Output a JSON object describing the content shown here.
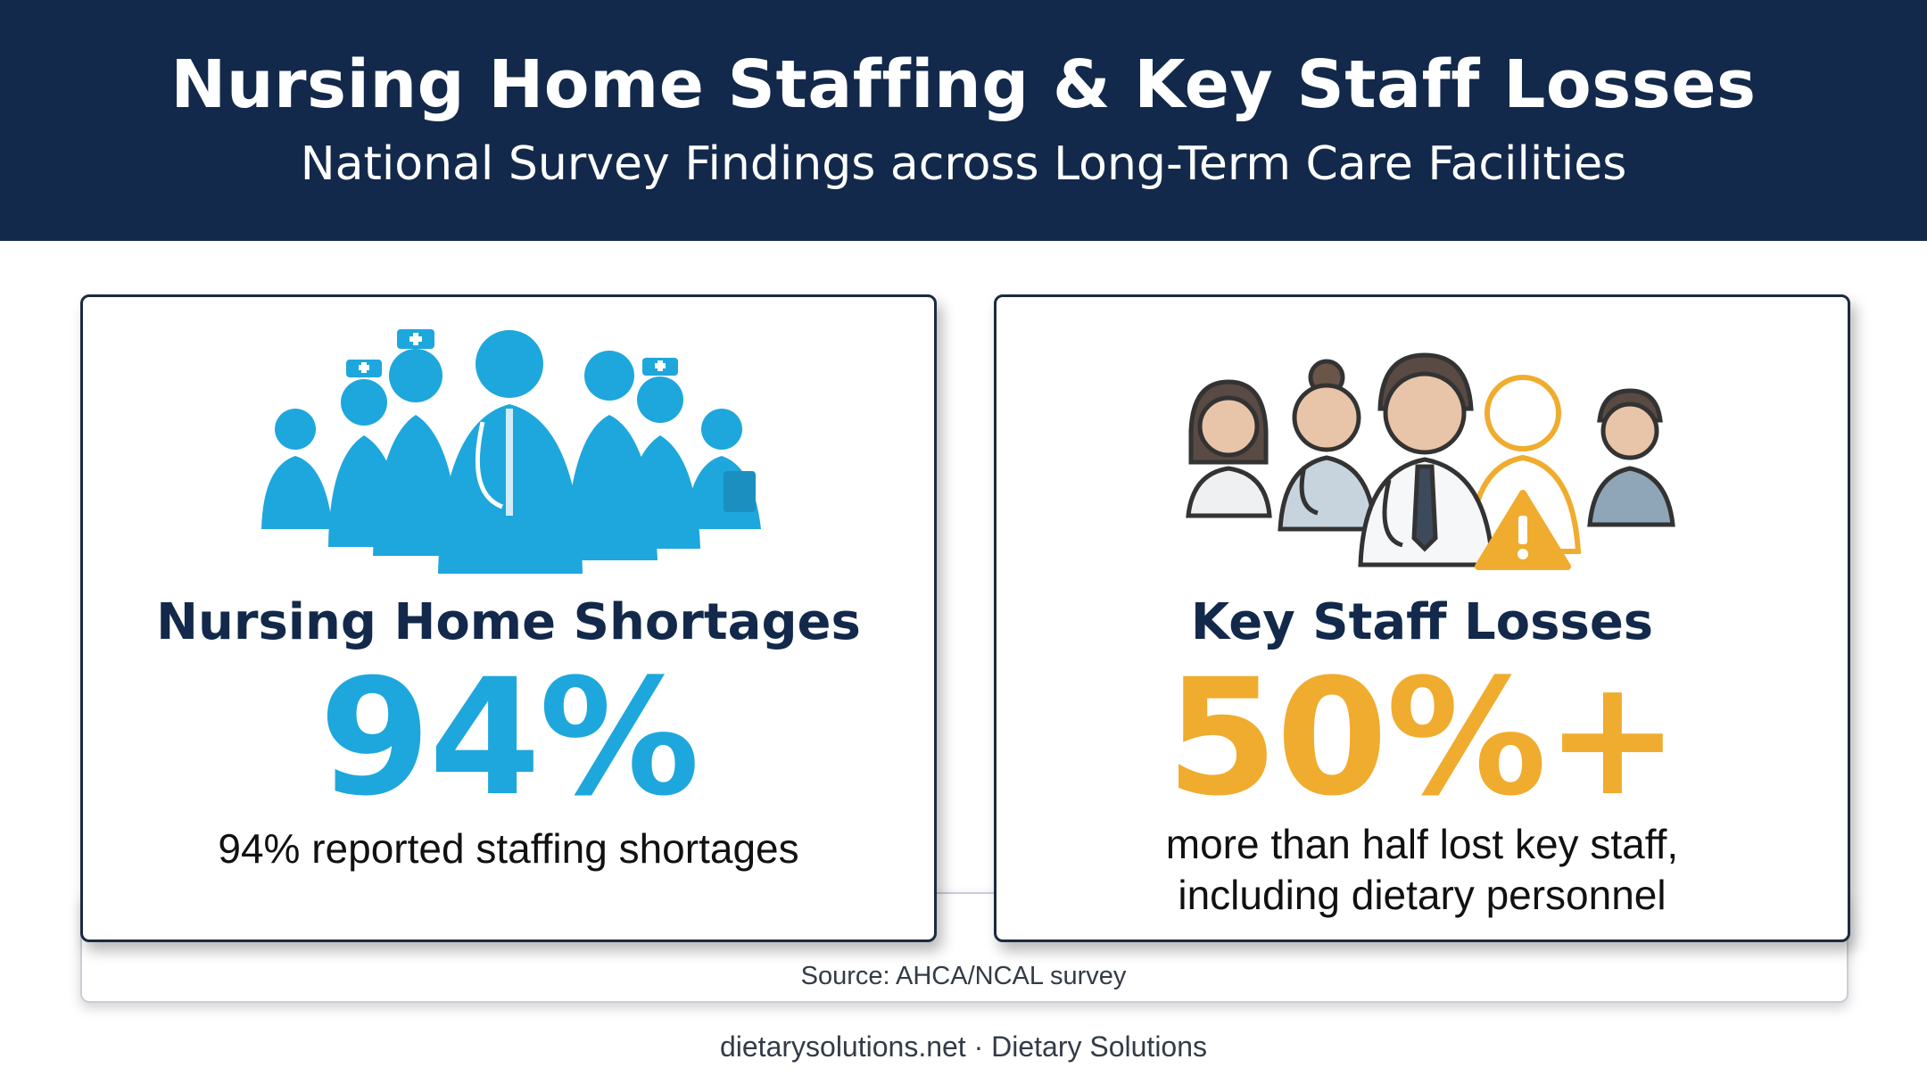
{
  "header": {
    "title": "Nursing Home Staffing & Key Staff Losses",
    "subtitle": "National Survey Findings across Long-Term Care Facilities"
  },
  "cards": [
    {
      "title": "Nursing Home Shortages",
      "stat": "94%",
      "description": "94% reported staffing shortages",
      "accent_color": "#1ea7dc",
      "icon": "healthcare-staff-group-icon"
    },
    {
      "title": "Key Staff Losses",
      "stat": "50%+",
      "description_lines": [
        "more than half lost key staff,",
        "including dietary personnel"
      ],
      "accent_color": "#f0ac2e",
      "icon": "staff-loss-warning-icon"
    }
  ],
  "source": "Source: AHCA/NCAL survey",
  "footer": "dietarysolutions.net · Dietary Solutions",
  "colors": {
    "header_bg": "#13294b",
    "title_text": "#13294b"
  }
}
